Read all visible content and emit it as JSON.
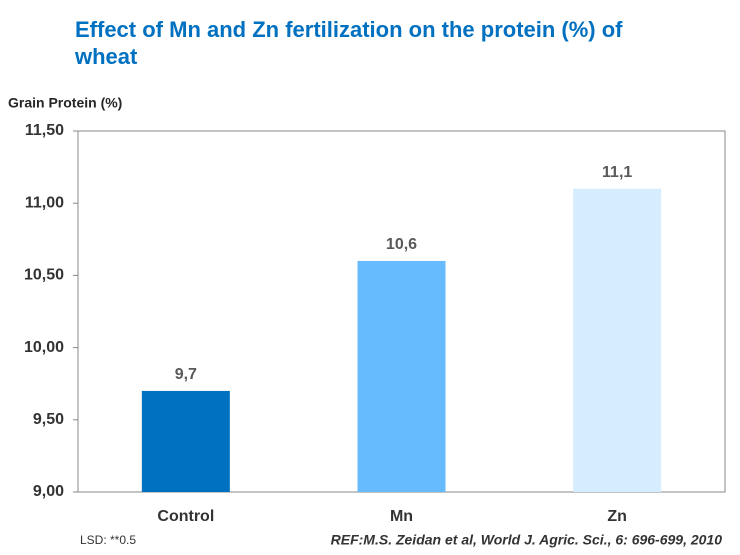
{
  "chart_data": {
    "type": "bar",
    "title": "Effect of Mn and Zn fertilization on the protein (%) of wheat",
    "y_label": "Grain Protein (%)",
    "categories": [
      "Control",
      "Mn",
      "Zn"
    ],
    "values": [
      9.7,
      10.6,
      11.1
    ],
    "value_labels": [
      "9,7",
      "10,6",
      "11,1"
    ],
    "colors": [
      "#0070c0",
      "#66bbff",
      "#d6ecff"
    ],
    "ylim": [
      9.0,
      11.5
    ],
    "yticks": [
      {
        "value": 9.0,
        "label": "9,00"
      },
      {
        "value": 9.5,
        "label": "9,50"
      },
      {
        "value": 10.0,
        "label": "10,00"
      },
      {
        "value": 10.5,
        "label": "10,50"
      },
      {
        "value": 11.0,
        "label": "11,00"
      },
      {
        "value": 11.5,
        "label": "11,50"
      }
    ],
    "footnote": "LSD: **0.5",
    "reference": "REF:M.S. Zeidan et al, World J. Agric. Sci., 6: 696-699, 2010"
  }
}
